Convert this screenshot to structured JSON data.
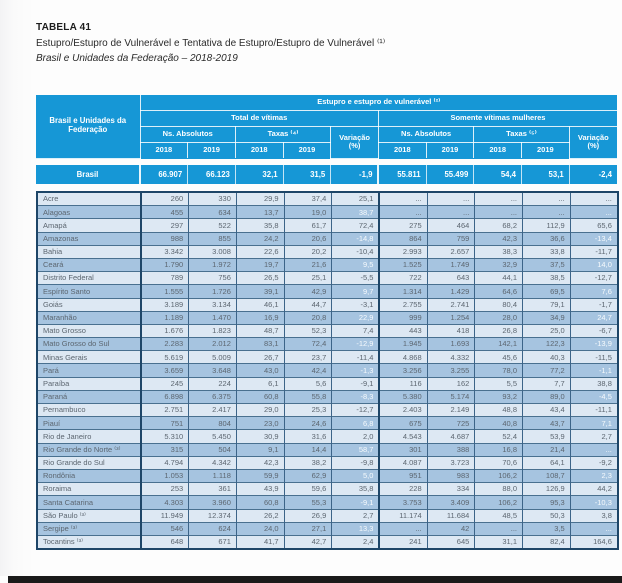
{
  "page": {
    "table_number": "TABELA 41",
    "title": "Estupro/Estupro de Vulnerável e Tentativa de Estupro/Estupro de Vulnerável ⁽¹⁾",
    "subtitle": "Brasil e Unidades da Federação – 2018-2019"
  },
  "colors": {
    "header_blue": "#1697d6",
    "stripe_light": "#dde8f3",
    "stripe_dark": "#a6c4e0",
    "border_navy": "#1e4668",
    "data_text": "#5c6670",
    "bottom_bar": "#1a1a1a"
  },
  "table": {
    "header": {
      "row_label": "Brasil e Unidades da Federação",
      "group_title": "Estupro e estupro de vulnerável ⁽²⁾",
      "group_left": "Total de vítimas",
      "group_right": "Somente vítimas mulheres",
      "abs_label_left": "Ns. Absolutos",
      "taxas_label_left": "Taxas ⁽⁴⁾",
      "abs_label_right": "Ns. Absolutos",
      "taxas_label_right": "Taxas ⁽⁵⁾",
      "variacao_line1": "Variação",
      "variacao_line2": "(%)",
      "years": [
        "2018",
        "2019",
        "2018",
        "2019",
        "2018",
        "2019",
        "2018",
        "2019"
      ]
    },
    "brasil_row": {
      "label": "Brasil",
      "values": [
        "66.907",
        "66.123",
        "32,1",
        "31,5",
        "-1,9",
        "55.811",
        "55.499",
        "54,4",
        "53,1",
        "-2,4"
      ]
    },
    "rows": [
      {
        "label": "Acre",
        "values": [
          "260",
          "330",
          "29,9",
          "37,4",
          "25,1",
          "...",
          "...",
          "...",
          "...",
          "..."
        ]
      },
      {
        "label": "Alagoas",
        "values": [
          "455",
          "634",
          "13,7",
          "19,0",
          "38,7",
          "...",
          "...",
          "...",
          "...",
          "..."
        ]
      },
      {
        "label": "Amapá",
        "values": [
          "297",
          "522",
          "35,8",
          "61,7",
          "72,4",
          "275",
          "464",
          "68,2",
          "112,9",
          "65,6"
        ]
      },
      {
        "label": "Amazonas",
        "values": [
          "988",
          "855",
          "24,2",
          "20,6",
          "-14,8",
          "864",
          "759",
          "42,3",
          "36,6",
          "-13,4"
        ]
      },
      {
        "label": "Bahia",
        "values": [
          "3.342",
          "3.008",
          "22,6",
          "20,2",
          "-10,4",
          "2.993",
          "2.657",
          "38,3",
          "33,8",
          "-11,7"
        ]
      },
      {
        "label": "Ceará",
        "values": [
          "1.790",
          "1.972",
          "19,7",
          "21,6",
          "9,5",
          "1.525",
          "1.749",
          "32,9",
          "37,5",
          "14,0"
        ]
      },
      {
        "label": "Distrito Federal",
        "values": [
          "789",
          "756",
          "26,5",
          "25,1",
          "-5,5",
          "722",
          "643",
          "44,1",
          "38,5",
          "-12,7"
        ]
      },
      {
        "label": "Espírito Santo",
        "values": [
          "1.555",
          "1.726",
          "39,1",
          "42,9",
          "9,7",
          "1.314",
          "1.429",
          "64,6",
          "69,5",
          "7,6"
        ]
      },
      {
        "label": "Goiás",
        "values": [
          "3.189",
          "3.134",
          "46,1",
          "44,7",
          "-3,1",
          "2.755",
          "2.741",
          "80,4",
          "79,1",
          "-1,7"
        ]
      },
      {
        "label": "Maranhão",
        "values": [
          "1.189",
          "1.470",
          "16,9",
          "20,8",
          "22,9",
          "999",
          "1.254",
          "28,0",
          "34,9",
          "24,7"
        ]
      },
      {
        "label": "Mato Grosso",
        "values": [
          "1.676",
          "1.823",
          "48,7",
          "52,3",
          "7,4",
          "443",
          "418",
          "26,8",
          "25,0",
          "-6,7"
        ]
      },
      {
        "label": "Mato Grosso do Sul",
        "values": [
          "2.283",
          "2.012",
          "83,1",
          "72,4",
          "-12,9",
          "1.945",
          "1.693",
          "142,1",
          "122,3",
          "-13,9"
        ]
      },
      {
        "label": "Minas Gerais",
        "values": [
          "5.619",
          "5.009",
          "26,7",
          "23,7",
          "-11,4",
          "4.868",
          "4.332",
          "45,6",
          "40,3",
          "-11,5"
        ]
      },
      {
        "label": "Pará",
        "values": [
          "3.659",
          "3.648",
          "43,0",
          "42,4",
          "-1,3",
          "3.256",
          "3.255",
          "78,0",
          "77,2",
          "-1,1"
        ]
      },
      {
        "label": "Paraíba",
        "values": [
          "245",
          "224",
          "6,1",
          "5,6",
          "-9,1",
          "116",
          "162",
          "5,5",
          "7,7",
          "38,8"
        ]
      },
      {
        "label": "Paraná",
        "values": [
          "6.898",
          "6.375",
          "60,8",
          "55,8",
          "-8,3",
          "5.380",
          "5.174",
          "93,2",
          "89,0",
          "-4,5"
        ]
      },
      {
        "label": "Pernambuco",
        "values": [
          "2.751",
          "2.417",
          "29,0",
          "25,3",
          "-12,7",
          "2.403",
          "2.149",
          "48,8",
          "43,4",
          "-11,1"
        ]
      },
      {
        "label": "Piauí",
        "values": [
          "751",
          "804",
          "23,0",
          "24,6",
          "6,8",
          "675",
          "725",
          "40,8",
          "43,7",
          "7,1"
        ]
      },
      {
        "label": "Rio de Janeiro",
        "values": [
          "5.310",
          "5.450",
          "30,9",
          "31,6",
          "2,0",
          "4.543",
          "4.687",
          "52,4",
          "53,9",
          "2,7"
        ]
      },
      {
        "label": "Rio Grande do Norte ⁽³⁾",
        "values": [
          "315",
          "504",
          "9,1",
          "14,4",
          "58,7",
          "301",
          "388",
          "16,8",
          "21,4",
          "..."
        ]
      },
      {
        "label": "Rio Grande do Sul",
        "values": [
          "4.794",
          "4.342",
          "42,3",
          "38,2",
          "-9,8",
          "4.087",
          "3.723",
          "70,6",
          "64,1",
          "-9,2"
        ]
      },
      {
        "label": "Rondônia",
        "values": [
          "1.053",
          "1.118",
          "59,9",
          "62,9",
          "5,0",
          "951",
          "983",
          "106,2",
          "108,7",
          "2,3"
        ]
      },
      {
        "label": "Roraima",
        "values": [
          "253",
          "361",
          "43,9",
          "59,6",
          "35,8",
          "228",
          "334",
          "88,0",
          "126,9",
          "44,2"
        ]
      },
      {
        "label": "Santa Catarina",
        "values": [
          "4.303",
          "3.960",
          "60,8",
          "55,3",
          "-9,1",
          "3.753",
          "3.409",
          "106,2",
          "95,3",
          "-10,3"
        ]
      },
      {
        "label": "São Paulo ⁽³⁾",
        "values": [
          "11.949",
          "12.374",
          "26,2",
          "26,9",
          "2,7",
          "11.174",
          "11.684",
          "48,5",
          "50,3",
          "3,8"
        ]
      },
      {
        "label": "Sergipe ⁽³⁾",
        "values": [
          "546",
          "624",
          "24,0",
          "27,1",
          "13,3",
          "...",
          "42",
          "...",
          "3,5",
          "..."
        ]
      },
      {
        "label": "Tocantins ⁽³⁾",
        "values": [
          "648",
          "671",
          "41,7",
          "42,7",
          "2,4",
          "241",
          "645",
          "31,1",
          "82,4",
          "164,6"
        ]
      }
    ]
  }
}
